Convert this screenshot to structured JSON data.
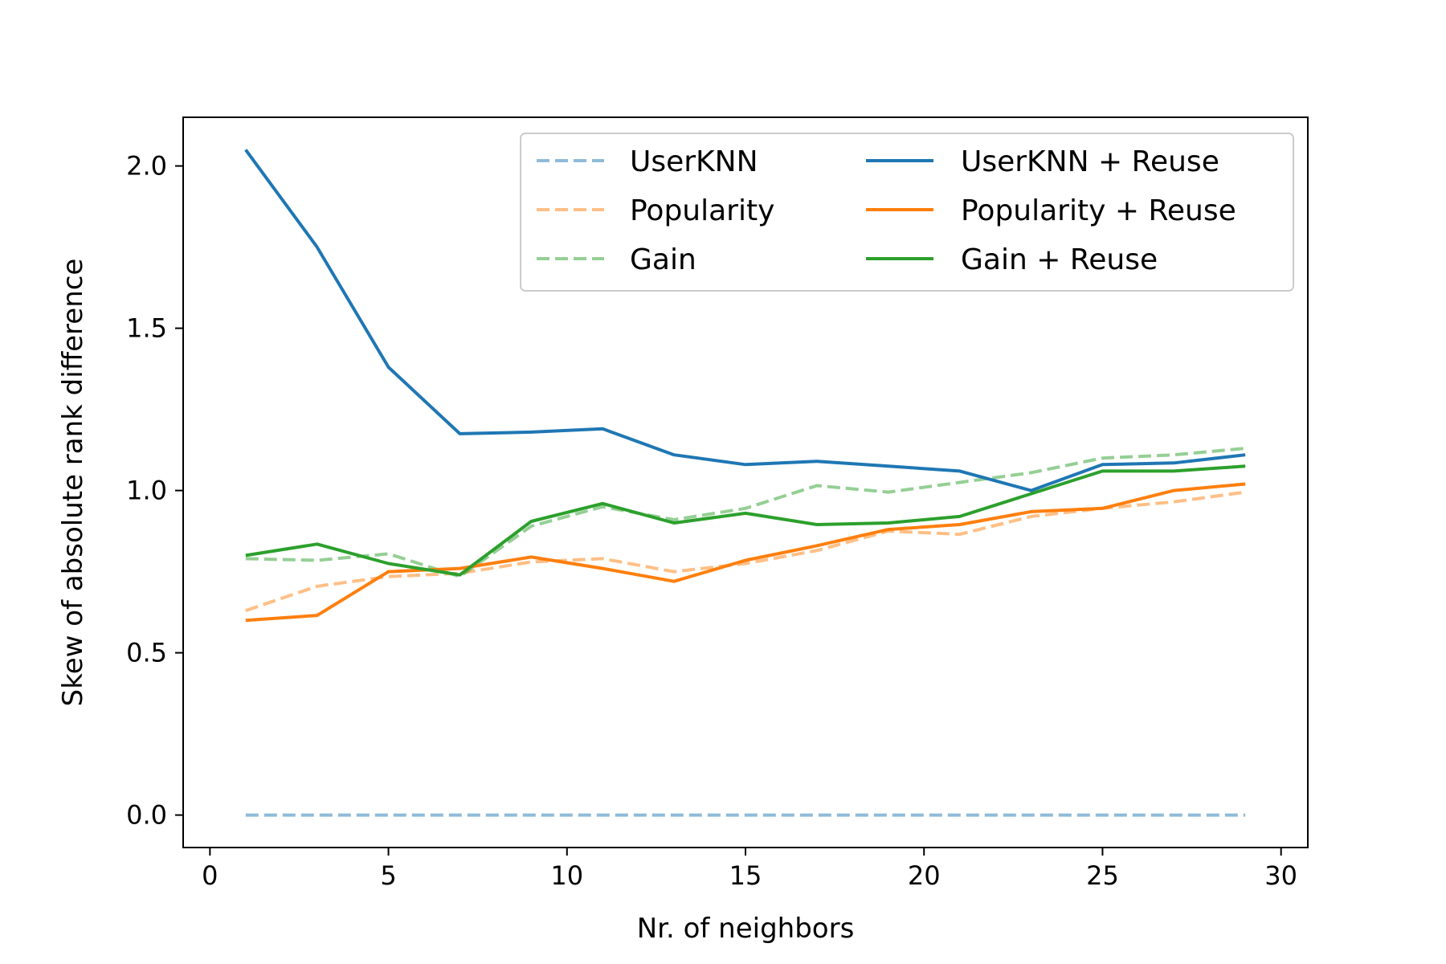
{
  "chart_data": {
    "type": "line",
    "xlabel": "Nr. of neighbors",
    "ylabel": "Skew of absolute rank difference",
    "xlim": [
      -0.75,
      30.75
    ],
    "ylim": [
      -0.1,
      2.15
    ],
    "xticks": [
      0,
      5,
      10,
      15,
      20,
      25,
      30
    ],
    "yticks": [
      0.0,
      0.5,
      1.0,
      1.5,
      2.0
    ],
    "xtick_labels": [
      "0",
      "5",
      "10",
      "15",
      "20",
      "25",
      "30"
    ],
    "ytick_labels": [
      "0.0",
      "0.5",
      "1.0",
      "1.5",
      "2.0"
    ],
    "grid": false,
    "legend_position": "top-right",
    "x": [
      1,
      3,
      5,
      7,
      9,
      11,
      13,
      15,
      17,
      19,
      21,
      23,
      25,
      27,
      29
    ],
    "series": [
      {
        "name": "UserKNN",
        "style": "dashed",
        "color": "#1f77b4",
        "opacity": 0.5,
        "values": [
          0,
          0,
          0,
          0,
          0,
          0,
          0,
          0,
          0,
          0,
          0,
          0,
          0,
          0,
          0
        ]
      },
      {
        "name": "Popularity",
        "style": "dashed",
        "color": "#ff7f0e",
        "opacity": 0.5,
        "values": [
          0.63,
          0.705,
          0.735,
          0.745,
          0.78,
          0.79,
          0.75,
          0.775,
          0.815,
          0.875,
          0.865,
          0.92,
          0.945,
          0.965,
          0.995
        ]
      },
      {
        "name": "Gain",
        "style": "dashed",
        "color": "#2ca02c",
        "opacity": 0.5,
        "values": [
          0.79,
          0.785,
          0.805,
          0.735,
          0.89,
          0.95,
          0.91,
          0.945,
          1.015,
          0.995,
          1.025,
          1.055,
          1.1,
          1.11,
          1.13
        ]
      },
      {
        "name": "UserKNN + Reuse",
        "style": "solid",
        "color": "#1f77b4",
        "opacity": 1,
        "values": [
          2.05,
          1.75,
          1.38,
          1.175,
          1.18,
          1.19,
          1.11,
          1.08,
          1.09,
          1.075,
          1.06,
          1.0,
          1.08,
          1.085,
          1.11
        ]
      },
      {
        "name": "Popularity + Reuse",
        "style": "solid",
        "color": "#ff7f0e",
        "opacity": 1,
        "values": [
          0.6,
          0.615,
          0.75,
          0.76,
          0.795,
          0.76,
          0.72,
          0.785,
          0.83,
          0.88,
          0.895,
          0.935,
          0.945,
          1.0,
          1.02
        ]
      },
      {
        "name": "Gain + Reuse",
        "style": "solid",
        "color": "#2ca02c",
        "opacity": 1,
        "values": [
          0.8,
          0.835,
          0.775,
          0.74,
          0.905,
          0.96,
          0.9,
          0.93,
          0.895,
          0.9,
          0.92,
          0.99,
          1.06,
          1.06,
          1.075
        ]
      }
    ]
  }
}
